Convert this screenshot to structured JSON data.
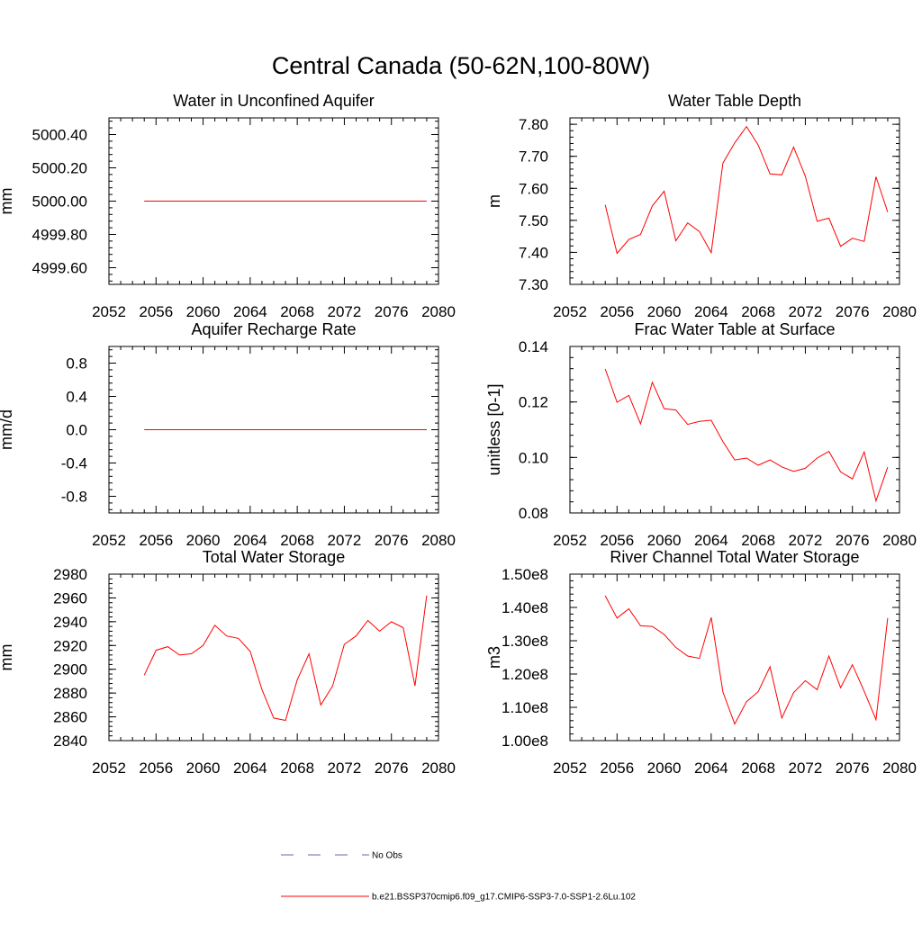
{
  "title": "Central Canada (50-62N,100-80W)",
  "legend": [
    {
      "label": "No Obs",
      "color": "#6a6aa8",
      "dash": true
    },
    {
      "label": "b.e21.BSSP370cmip6.f09_g17.CMIP6-SSP3-7.0-SSP1-2.6Lu.102",
      "color": "#ff0000",
      "dash": false
    }
  ],
  "chart_data": [
    {
      "type": "line",
      "title": "Water in Unconfined Aquifer",
      "ylabel": "mm",
      "xlim": [
        2052,
        2080
      ],
      "ylim": [
        4999.5,
        5000.5
      ],
      "x_ticks": [
        "2052",
        "2056",
        "2060",
        "2064",
        "2068",
        "2072",
        "2076",
        "2080"
      ],
      "y_ticks": [
        {
          "v": 4999.6,
          "label": "4999.60"
        },
        {
          "v": 4999.8,
          "label": "4999.80"
        },
        {
          "v": 5000.0,
          "label": "5000.00"
        },
        {
          "v": 5000.2,
          "label": "5000.20"
        },
        {
          "v": 5000.4,
          "label": "5000.40"
        }
      ],
      "series": [
        {
          "color": "#ff0000",
          "x": [
            2055,
            2056,
            2057,
            2058,
            2059,
            2060,
            2061,
            2062,
            2063,
            2064,
            2065,
            2066,
            2067,
            2068,
            2069,
            2070,
            2071,
            2072,
            2073,
            2074,
            2075,
            2076,
            2077,
            2078,
            2079
          ],
          "values": [
            5000,
            5000,
            5000,
            5000,
            5000,
            5000,
            5000,
            5000,
            5000,
            5000,
            5000,
            5000,
            5000,
            5000,
            5000,
            5000,
            5000,
            5000,
            5000,
            5000,
            5000,
            5000,
            5000,
            5000,
            5000
          ]
        }
      ]
    },
    {
      "type": "line",
      "title": "Water Table Depth",
      "ylabel": "m",
      "xlim": [
        2052,
        2080
      ],
      "ylim": [
        7.3,
        7.82
      ],
      "x_ticks": [
        "2052",
        "2056",
        "2060",
        "2064",
        "2068",
        "2072",
        "2076",
        "2080"
      ],
      "y_ticks": [
        {
          "v": 7.3,
          "label": "7.30"
        },
        {
          "v": 7.4,
          "label": "7.40"
        },
        {
          "v": 7.5,
          "label": "7.50"
        },
        {
          "v": 7.6,
          "label": "7.60"
        },
        {
          "v": 7.7,
          "label": "7.70"
        },
        {
          "v": 7.8,
          "label": "7.80"
        }
      ],
      "series": [
        {
          "color": "#ff0000",
          "x": [
            2055,
            2056,
            2057,
            2058,
            2059,
            2060,
            2061,
            2062,
            2063,
            2064,
            2065,
            2066,
            2067,
            2068,
            2069,
            2070,
            2071,
            2072,
            2073,
            2074,
            2075,
            2076,
            2077,
            2078,
            2079
          ],
          "values": [
            7.548,
            7.397,
            7.44,
            7.456,
            7.545,
            7.591,
            7.436,
            7.492,
            7.465,
            7.399,
            7.679,
            7.742,
            7.793,
            7.735,
            7.645,
            7.642,
            7.729,
            7.638,
            7.497,
            7.507,
            7.419,
            7.444,
            7.434,
            7.636,
            7.526
          ]
        }
      ]
    },
    {
      "type": "line",
      "title": "Aquifer Recharge Rate",
      "ylabel": "mm/d",
      "xlim": [
        2052,
        2080
      ],
      "ylim": [
        -1.0,
        1.0
      ],
      "x_ticks": [
        "2052",
        "2056",
        "2060",
        "2064",
        "2068",
        "2072",
        "2076",
        "2080"
      ],
      "y_ticks": [
        {
          "v": -0.8,
          "label": "-0.8"
        },
        {
          "v": -0.4,
          "label": "-0.4"
        },
        {
          "v": 0.0,
          "label": "0.0"
        },
        {
          "v": 0.4,
          "label": "0.4"
        },
        {
          "v": 0.8,
          "label": "0.8"
        }
      ],
      "series": [
        {
          "color": "#ff0000",
          "x": [
            2055,
            2056,
            2057,
            2058,
            2059,
            2060,
            2061,
            2062,
            2063,
            2064,
            2065,
            2066,
            2067,
            2068,
            2069,
            2070,
            2071,
            2072,
            2073,
            2074,
            2075,
            2076,
            2077,
            2078,
            2079
          ],
          "values": [
            0,
            0,
            0,
            0,
            0,
            0,
            0,
            0,
            0,
            0,
            0,
            0,
            0,
            0,
            0,
            0,
            0,
            0,
            0,
            0,
            0,
            0,
            0,
            0,
            0
          ]
        }
      ]
    },
    {
      "type": "line",
      "title": "Frac Water Table at Surface",
      "ylabel": "unitless [0-1]",
      "xlim": [
        2052,
        2080
      ],
      "ylim": [
        0.08,
        0.14
      ],
      "x_ticks": [
        "2052",
        "2056",
        "2060",
        "2064",
        "2068",
        "2072",
        "2076",
        "2080"
      ],
      "y_ticks": [
        {
          "v": 0.08,
          "label": "0.08"
        },
        {
          "v": 0.1,
          "label": "0.10"
        },
        {
          "v": 0.12,
          "label": "0.12"
        },
        {
          "v": 0.14,
          "label": "0.14"
        }
      ],
      "series": [
        {
          "color": "#ff0000",
          "x": [
            2055,
            2056,
            2057,
            2058,
            2059,
            2060,
            2061,
            2062,
            2063,
            2064,
            2065,
            2066,
            2067,
            2068,
            2069,
            2070,
            2071,
            2072,
            2073,
            2074,
            2075,
            2076,
            2077,
            2078,
            2079
          ],
          "values": [
            0.1319,
            0.1199,
            0.1224,
            0.1121,
            0.1271,
            0.1176,
            0.1171,
            0.1119,
            0.113,
            0.1134,
            0.1057,
            0.0991,
            0.0998,
            0.0972,
            0.0991,
            0.0966,
            0.095,
            0.0961,
            0.0998,
            0.1022,
            0.0948,
            0.0923,
            0.102,
            0.0843,
            0.0965
          ]
        }
      ]
    },
    {
      "type": "line",
      "title": "Total Water Storage",
      "ylabel": "mm",
      "xlim": [
        2052,
        2080
      ],
      "ylim": [
        2840,
        2980
      ],
      "x_ticks": [
        "2052",
        "2056",
        "2060",
        "2064",
        "2068",
        "2072",
        "2076",
        "2080"
      ],
      "y_ticks": [
        {
          "v": 2840,
          "label": "2840"
        },
        {
          "v": 2860,
          "label": "2860"
        },
        {
          "v": 2880,
          "label": "2880"
        },
        {
          "v": 2900,
          "label": "2900"
        },
        {
          "v": 2920,
          "label": "2920"
        },
        {
          "v": 2940,
          "label": "2940"
        },
        {
          "v": 2960,
          "label": "2960"
        },
        {
          "v": 2980,
          "label": "2980"
        }
      ],
      "series": [
        {
          "color": "#ff0000",
          "x": [
            2055,
            2056,
            2057,
            2058,
            2059,
            2060,
            2061,
            2062,
            2063,
            2064,
            2065,
            2066,
            2067,
            2068,
            2069,
            2070,
            2071,
            2072,
            2073,
            2074,
            2075,
            2076,
            2077,
            2078,
            2079
          ],
          "values": [
            2895,
            2916,
            2919,
            2912,
            2913,
            2920,
            2937,
            2928,
            2926,
            2915,
            2883,
            2859,
            2857,
            2891,
            2913,
            2870,
            2886,
            2921,
            2928,
            2941,
            2932,
            2940,
            2935,
            2886,
            2962
          ]
        }
      ]
    },
    {
      "type": "line",
      "title": "River Channel Total Water Storage",
      "ylabel": "m3",
      "xlim": [
        2052,
        2080
      ],
      "ylim": [
        100000000.0,
        150000000.0
      ],
      "x_ticks": [
        "2052",
        "2056",
        "2060",
        "2064",
        "2068",
        "2072",
        "2076",
        "2080"
      ],
      "y_ticks": [
        {
          "v": 100000000.0,
          "label": "1.00e8"
        },
        {
          "v": 110000000.0,
          "label": "1.10e8"
        },
        {
          "v": 120000000.0,
          "label": "1.20e8"
        },
        {
          "v": 130000000.0,
          "label": "1.30e8"
        },
        {
          "v": 140000000.0,
          "label": "1.40e8"
        },
        {
          "v": 150000000.0,
          "label": "1.50e8"
        }
      ],
      "series": [
        {
          "color": "#ff0000",
          "x": [
            2055,
            2056,
            2057,
            2058,
            2059,
            2060,
            2061,
            2062,
            2063,
            2064,
            2065,
            2066,
            2067,
            2068,
            2069,
            2070,
            2071,
            2072,
            2073,
            2074,
            2075,
            2076,
            2077,
            2078,
            2079
          ],
          "values": [
            143500000.0,
            136800000.0,
            139600000.0,
            134500000.0,
            134300000.0,
            131900000.0,
            128000000.0,
            125400000.0,
            124700000.0,
            137000000.0,
            114600000.0,
            105000000.0,
            111700000.0,
            114700000.0,
            122200000.0,
            106800000.0,
            114400000.0,
            118000000.0,
            115300000.0,
            125400000.0,
            115900000.0,
            122800000.0,
            114800000.0,
            106300000.0,
            136800000.0
          ]
        }
      ]
    }
  ]
}
